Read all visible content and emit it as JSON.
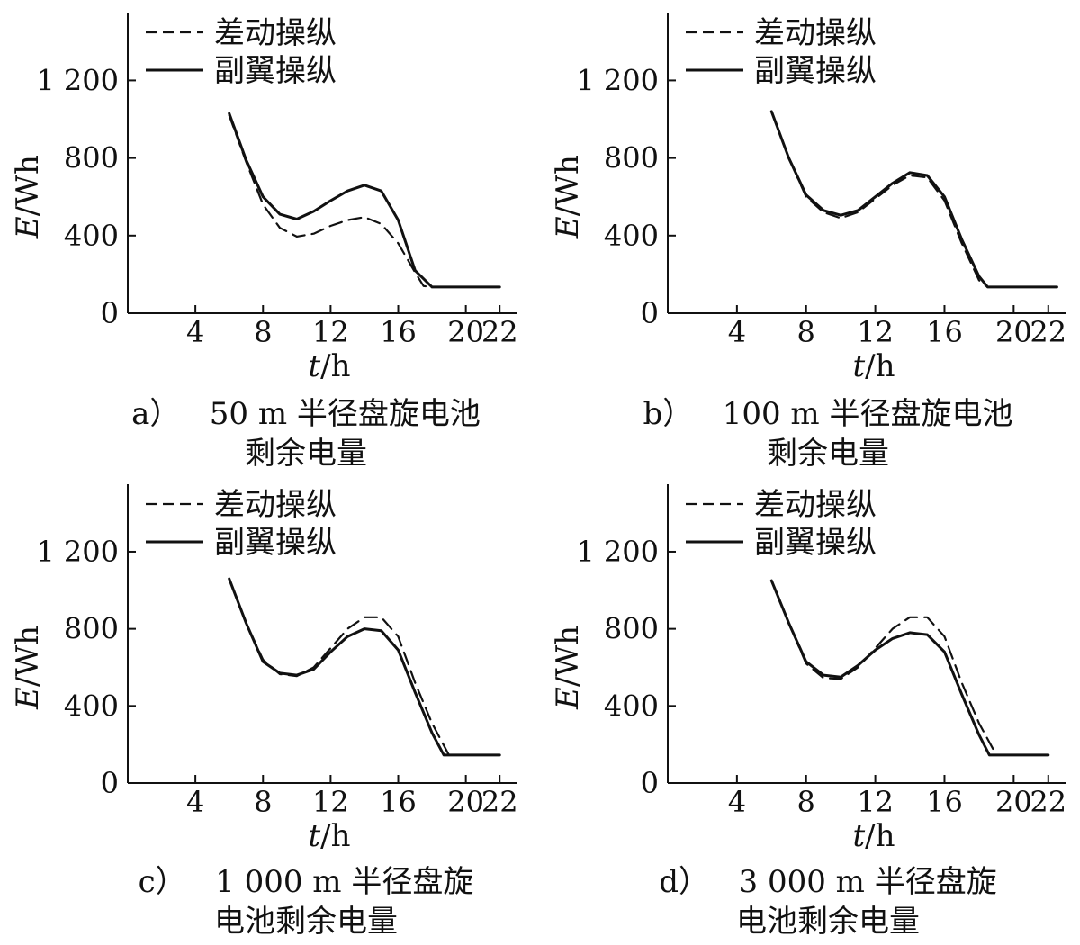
{
  "chart_data": [
    {
      "type": "line",
      "panel_label": "a）",
      "caption_line1": "50 m 半径盘旋电池",
      "caption_line2": "剩余电量",
      "xlabel_var": "t",
      "xlabel_unit": "/h",
      "ylabel_var": "E",
      "ylabel_unit": "/Wh",
      "xlim": [
        0,
        23
      ],
      "ylim": [
        0,
        1550
      ],
      "xticks": [
        4,
        8,
        12,
        16,
        20,
        22
      ],
      "yticks": [
        0,
        400,
        800,
        1200
      ],
      "ytick_labels": [
        "0",
        "400",
        "800",
        "1 200"
      ],
      "grid": false,
      "legend_position": "top-left",
      "series": [
        {
          "name": "差动操纵",
          "style": "dashed",
          "x": [
            6,
            7,
            8,
            9,
            10,
            11,
            12,
            13,
            14,
            15,
            16,
            17,
            17.5,
            18,
            19,
            20,
            21,
            22
          ],
          "y": [
            1020,
            780,
            560,
            440,
            395,
            410,
            450,
            480,
            495,
            460,
            360,
            210,
            140,
            135,
            135,
            135,
            135,
            135
          ]
        },
        {
          "name": "副翼操纵",
          "style": "solid",
          "x": [
            6,
            7,
            8,
            9,
            10,
            11,
            12,
            13,
            14,
            15,
            16,
            17,
            18,
            19,
            20,
            21,
            22
          ],
          "y": [
            1030,
            790,
            600,
            510,
            485,
            525,
            580,
            630,
            660,
            630,
            480,
            220,
            135,
            135,
            135,
            135,
            135
          ]
        }
      ]
    },
    {
      "type": "line",
      "panel_label": "b）",
      "caption_line1": "100 m 半径盘旋电池",
      "caption_line2": "剩余电量",
      "xlabel_var": "t",
      "xlabel_unit": "/h",
      "ylabel_var": "E",
      "ylabel_unit": "/Wh",
      "xlim": [
        0,
        23
      ],
      "ylim": [
        0,
        1550
      ],
      "xticks": [
        4,
        8,
        12,
        16,
        20,
        22
      ],
      "yticks": [
        0,
        400,
        800,
        1200
      ],
      "ytick_labels": [
        "0",
        "400",
        "800",
        "1 200"
      ],
      "grid": false,
      "legend_position": "top-left",
      "series": [
        {
          "name": "差动操纵",
          "style": "dashed",
          "x": [
            6,
            7,
            8,
            9,
            10,
            11,
            12,
            13,
            14,
            15,
            16,
            17,
            18,
            18.5,
            19,
            20,
            21,
            22.5
          ],
          "y": [
            1040,
            800,
            600,
            520,
            490,
            520,
            590,
            660,
            710,
            700,
            580,
            360,
            170,
            135,
            135,
            135,
            135,
            135
          ]
        },
        {
          "name": "副翼操纵",
          "style": "solid",
          "x": [
            6,
            7,
            8,
            9,
            10,
            11,
            12,
            13,
            14,
            15,
            16,
            17,
            18,
            18.5,
            19,
            20,
            21,
            22.5
          ],
          "y": [
            1040,
            800,
            610,
            530,
            505,
            530,
            600,
            670,
            725,
            710,
            600,
            380,
            190,
            135,
            135,
            135,
            135,
            135
          ]
        }
      ]
    },
    {
      "type": "line",
      "panel_label": "c）",
      "caption_line1": "1 000 m 半径盘旋",
      "caption_line2": "电池剩余电量",
      "xlabel_var": "t",
      "xlabel_unit": "/h",
      "ylabel_var": "E",
      "ylabel_unit": "/Wh",
      "xlim": [
        0,
        23
      ],
      "ylim": [
        0,
        1550
      ],
      "xticks": [
        4,
        8,
        12,
        16,
        20,
        22
      ],
      "yticks": [
        0,
        400,
        800,
        1200
      ],
      "ytick_labels": [
        "0",
        "400",
        "800",
        "1 200"
      ],
      "grid": false,
      "legend_position": "top-left",
      "series": [
        {
          "name": "差动操纵",
          "style": "dashed",
          "x": [
            6,
            7,
            8,
            9,
            10,
            11,
            12,
            13,
            14,
            15,
            16,
            17,
            18,
            19,
            20,
            21,
            22
          ],
          "y": [
            1060,
            830,
            640,
            565,
            555,
            600,
            700,
            800,
            860,
            860,
            760,
            520,
            310,
            145,
            145,
            145,
            145
          ]
        },
        {
          "name": "副翼操纵",
          "style": "solid",
          "x": [
            6,
            7,
            8,
            9,
            10,
            11,
            12,
            13,
            14,
            15,
            16,
            17,
            18,
            18.7,
            19,
            20,
            21,
            22
          ],
          "y": [
            1060,
            830,
            630,
            570,
            560,
            590,
            680,
            760,
            800,
            790,
            690,
            470,
            260,
            145,
            145,
            145,
            145,
            145
          ]
        }
      ]
    },
    {
      "type": "line",
      "panel_label": "d）",
      "caption_line1": "3 000 m 半径盘旋",
      "caption_line2": "电池剩余电量",
      "xlabel_var": "t",
      "xlabel_unit": "/h",
      "ylabel_var": "E",
      "ylabel_unit": "/Wh",
      "xlim": [
        0,
        23
      ],
      "ylim": [
        0,
        1550
      ],
      "xticks": [
        4,
        8,
        12,
        16,
        20,
        22
      ],
      "yticks": [
        0,
        400,
        800,
        1200
      ],
      "ytick_labels": [
        "0",
        "400",
        "800",
        "1 200"
      ],
      "grid": false,
      "legend_position": "top-left",
      "series": [
        {
          "name": "差动操纵",
          "style": "dashed",
          "x": [
            6,
            7,
            8,
            9,
            10,
            11,
            12,
            13,
            14,
            15,
            16,
            17,
            18,
            19,
            20,
            21,
            22
          ],
          "y": [
            1050,
            830,
            620,
            545,
            540,
            600,
            700,
            800,
            860,
            860,
            760,
            520,
            310,
            145,
            145,
            145,
            145
          ]
        },
        {
          "name": "副翼操纵",
          "style": "solid",
          "x": [
            6,
            7,
            8,
            9,
            10,
            11,
            12,
            13,
            14,
            15,
            16,
            17,
            18,
            18.6,
            19,
            20,
            21,
            22
          ],
          "y": [
            1050,
            830,
            630,
            560,
            550,
            610,
            690,
            750,
            780,
            770,
            680,
            460,
            250,
            145,
            145,
            145,
            145,
            145
          ]
        }
      ]
    }
  ]
}
